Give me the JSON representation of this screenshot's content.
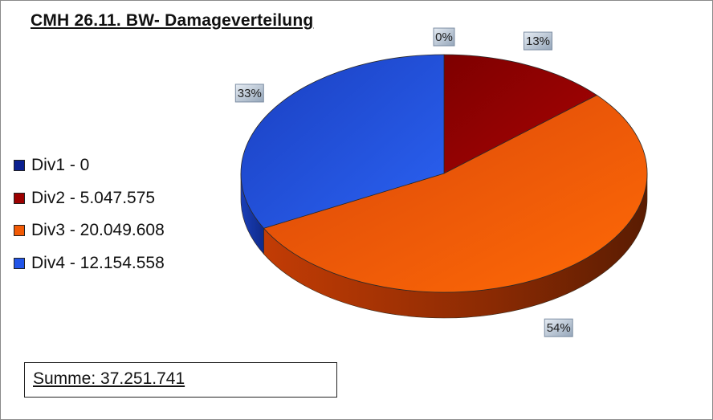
{
  "chart_data": {
    "type": "pie",
    "title": "CMH 26.11.  BW- Damageverteilung",
    "three_d": true,
    "legend_position": "left",
    "series": [
      {
        "name": "Div1 - 0",
        "value": 0,
        "percent_label": "0%",
        "color": "#0a1f8f"
      },
      {
        "name": "Div2 - 5.047.575",
        "value": 5047575,
        "percent_label": "13%",
        "color": "#9c0000"
      },
      {
        "name": "Div3 - 20.049.608",
        "value": 20049608,
        "percent_label": "54%",
        "color": "#f25a05"
      },
      {
        "name": "Div4 - 12.154.558",
        "value": 12154558,
        "percent_label": "33%",
        "color": "#2255e8"
      }
    ],
    "annotation": "Summe:  37.251.741"
  }
}
